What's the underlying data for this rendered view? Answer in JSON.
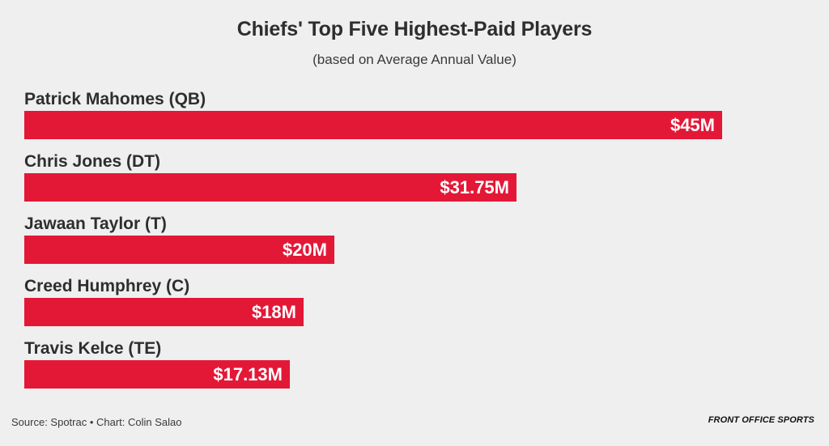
{
  "chart_data": {
    "type": "bar",
    "orientation": "horizontal",
    "title": "Chiefs' Top Five Highest-Paid Players",
    "subtitle": "(based on Average Annual Value)",
    "categories": [
      "Patrick Mahomes (QB)",
      "Chris Jones (DT)",
      "Jawaan Taylor (T)",
      "Creed Humphrey (C)",
      "Travis Kelce (TE)"
    ],
    "values": [
      45,
      31.75,
      20,
      18,
      17.13
    ],
    "value_labels": [
      "$45M",
      "$31.75M",
      "$20M",
      "$18M",
      "$17.13M"
    ],
    "unit": "$M",
    "xlim": [
      0,
      45
    ],
    "xlabel": "",
    "ylabel": "",
    "grid": false,
    "bar_color": "#e31837"
  },
  "footer": {
    "source": "Source: Spotrac • Chart: Colin Salao",
    "logo": "FRONT OFFICE SPORTS"
  }
}
